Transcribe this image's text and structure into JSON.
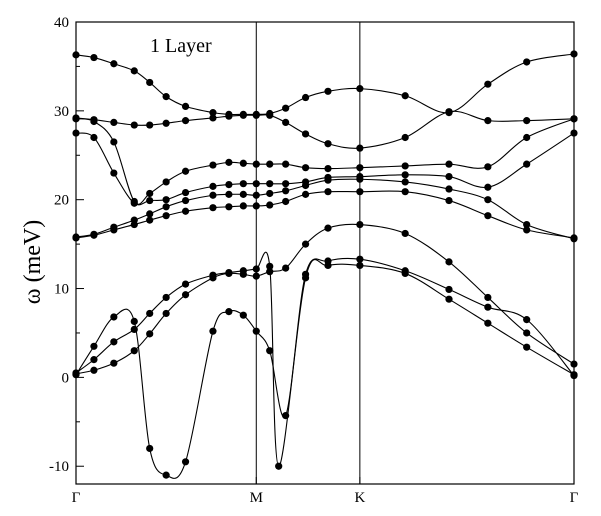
{
  "chart_data": {
    "type": "line",
    "title": "1 Layer",
    "xlabel": "",
    "ylabel": "ω (meV)",
    "ylim": [
      -12,
      40
    ],
    "yticks": [
      -10,
      0,
      10,
      20,
      30,
      40
    ],
    "high_symmetry_points": [
      {
        "label": "Γ",
        "x": 0
      },
      {
        "label": "M",
        "x": 0.362
      },
      {
        "label": "K",
        "x": 0.57
      },
      {
        "label": "Γ",
        "x": 1
      }
    ],
    "line_color": "#000000",
    "series": [
      {
        "x": [
          0,
          0.036,
          0.076,
          0.117,
          0.148,
          0.181,
          0.22,
          0.275,
          0.307,
          0.336,
          0.362,
          0.389,
          0.421,
          0.461,
          0.506,
          0.57,
          0.661,
          0.749,
          0.827,
          0.905,
          1
        ],
        "values": [
          0.3,
          3.5,
          6.8,
          6.3,
          -8.0,
          -11.0,
          -9.5,
          5.2,
          7.4,
          7.0,
          5.2,
          3.0,
          -4.3,
          11.6,
          13.1,
          13.3,
          12.0,
          9.9,
          7.9,
          6.5,
          0.2
        ]
      },
      {
        "x": [
          0,
          0.036,
          0.076,
          0.117,
          0.148,
          0.181,
          0.22,
          0.275,
          0.307,
          0.336,
          0.362,
          0.389,
          0.407,
          0.461,
          0.506,
          0.57,
          0.661,
          0.749,
          0.827,
          0.905,
          1
        ],
        "values": [
          0.5,
          2.0,
          4.0,
          5.4,
          7.2,
          9.0,
          10.5,
          11.5,
          11.8,
          12.0,
          12.2,
          12.5,
          -10.0,
          11.2,
          12.6,
          12.6,
          11.7,
          8.8,
          6.1,
          3.4,
          0.3
        ]
      },
      {
        "x": [
          0,
          0.036,
          0.076,
          0.117,
          0.148,
          0.181,
          0.22,
          0.275,
          0.307,
          0.336,
          0.362,
          0.389,
          0.421,
          0.461,
          0.506,
          0.57,
          0.661,
          0.749,
          0.827,
          0.905,
          1
        ],
        "values": [
          0.4,
          0.8,
          1.6,
          3.0,
          4.9,
          7.2,
          9.3,
          11.2,
          11.7,
          11.6,
          11.4,
          11.9,
          12.3,
          15.0,
          16.8,
          17.2,
          16.2,
          13.0,
          9.0,
          5.0,
          1.5
        ]
      },
      {
        "x": [
          0,
          0.036,
          0.076,
          0.117,
          0.148,
          0.181,
          0.22,
          0.275,
          0.307,
          0.336,
          0.362,
          0.389,
          0.421,
          0.461,
          0.506,
          0.57,
          0.661,
          0.749,
          0.827,
          0.905,
          1
        ],
        "values": [
          15.7,
          16.0,
          16.6,
          17.2,
          17.7,
          18.2,
          18.7,
          19.1,
          19.2,
          19.3,
          19.3,
          19.4,
          19.8,
          20.6,
          20.9,
          20.9,
          20.9,
          19.9,
          18.2,
          16.6,
          15.7
        ]
      },
      {
        "x": [
          0,
          0.036,
          0.076,
          0.117,
          0.148,
          0.181,
          0.22,
          0.275,
          0.307,
          0.336,
          0.362,
          0.389,
          0.421,
          0.461,
          0.506,
          0.57,
          0.661,
          0.749,
          0.827,
          0.905,
          1
        ],
        "values": [
          15.8,
          16.1,
          16.9,
          17.7,
          18.4,
          19.2,
          19.9,
          20.5,
          20.6,
          20.6,
          20.5,
          20.7,
          21.0,
          21.6,
          22.2,
          22.3,
          22.0,
          21.2,
          20.0,
          17.2,
          15.6
        ]
      },
      {
        "x": [
          0,
          0.036,
          0.076,
          0.117,
          0.148,
          0.181,
          0.22,
          0.275,
          0.307,
          0.336,
          0.362,
          0.389,
          0.421,
          0.461,
          0.506,
          0.57,
          0.661,
          0.749,
          0.827,
          0.905,
          1
        ],
        "values": [
          27.5,
          27.0,
          23.0,
          19.6,
          19.9,
          20.0,
          20.8,
          21.5,
          21.7,
          21.8,
          21.8,
          21.8,
          21.8,
          22.0,
          22.5,
          22.6,
          22.8,
          22.6,
          21.4,
          24.0,
          27.5
        ]
      },
      {
        "x": [
          0,
          0.036,
          0.076,
          0.117,
          0.148,
          0.181,
          0.22,
          0.275,
          0.307,
          0.336,
          0.362,
          0.389,
          0.421,
          0.461,
          0.506,
          0.57,
          0.661,
          0.749,
          0.827,
          0.905,
          1
        ],
        "values": [
          29.1,
          28.8,
          26.5,
          19.8,
          20.7,
          22.0,
          23.2,
          23.9,
          24.2,
          24.1,
          24.0,
          24.0,
          24.0,
          23.6,
          23.5,
          23.6,
          23.8,
          24.0,
          23.7,
          27.0,
          29.1
        ]
      },
      {
        "x": [
          0,
          0.036,
          0.076,
          0.117,
          0.148,
          0.181,
          0.22,
          0.275,
          0.307,
          0.336,
          0.362,
          0.389,
          0.421,
          0.461,
          0.506,
          0.57,
          0.661,
          0.749,
          0.827,
          0.905,
          1
        ],
        "values": [
          29.2,
          29.0,
          28.7,
          28.4,
          28.4,
          28.6,
          28.9,
          29.2,
          29.4,
          29.5,
          29.5,
          29.5,
          28.7,
          27.4,
          26.3,
          25.8,
          27.0,
          29.9,
          28.9,
          28.9,
          29.1
        ]
      },
      {
        "x": [
          0,
          0.036,
          0.076,
          0.117,
          0.148,
          0.181,
          0.22,
          0.275,
          0.307,
          0.336,
          0.362,
          0.389,
          0.421,
          0.461,
          0.506,
          0.57,
          0.661,
          0.749,
          0.827,
          0.905,
          1
        ],
        "values": [
          36.3,
          36.0,
          35.3,
          34.5,
          33.2,
          31.6,
          30.5,
          29.8,
          29.6,
          29.6,
          29.6,
          29.7,
          30.3,
          31.5,
          32.2,
          32.5,
          31.7,
          29.8,
          33.0,
          35.5,
          36.4
        ]
      }
    ]
  }
}
